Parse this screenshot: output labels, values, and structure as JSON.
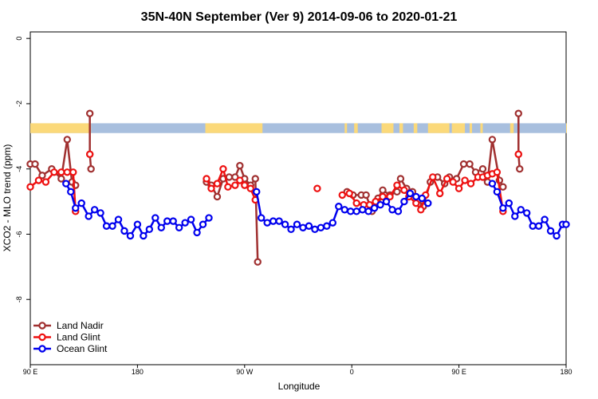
{
  "chart_data": {
    "type": "line",
    "title": "35N-40N September (Ver 9)   2014-09-06 to 2020-01-21",
    "xlabel": "Longitude",
    "ylabel": "XCO2 - MLO trend (ppm)",
    "xlim": [
      90,
      540
    ],
    "ylim": [
      -10,
      0.2
    ],
    "x_ticks": [
      {
        "value": 90,
        "label": "90 E"
      },
      {
        "value": 180,
        "label": "180"
      },
      {
        "value": 270,
        "label": "90 W"
      },
      {
        "value": 360,
        "label": "0"
      },
      {
        "value": 450,
        "label": "90 E"
      },
      {
        "value": 540,
        "label": "180"
      }
    ],
    "y_ticks": [
      {
        "value": 0,
        "label": "0"
      },
      {
        "value": -2,
        "label": "-2"
      },
      {
        "value": -4,
        "label": "-4"
      },
      {
        "value": -6,
        "label": "-6"
      },
      {
        "value": -8,
        "label": "-8"
      }
    ],
    "legend_position": "bottom-left",
    "land_sea_strip": {
      "y_range": [
        -2.9,
        -2.6
      ],
      "ocean_color": "#a8bfde",
      "land_color": "#fbd97a",
      "land_x_ranges": [
        [
          90,
          141
        ],
        [
          237,
          285
        ],
        [
          354,
          356
        ],
        [
          362,
          365
        ],
        [
          385,
          395
        ],
        [
          400,
          403
        ],
        [
          412,
          415
        ],
        [
          424,
          442
        ],
        [
          444,
          455
        ],
        [
          459,
          461
        ],
        [
          468,
          470
        ],
        [
          493,
          496
        ],
        [
          540,
          540
        ]
      ]
    },
    "series": [
      {
        "name": "Land Nadir",
        "color": "#a03030",
        "segments": [
          [
            [
              90,
              -3.85
            ],
            [
              94,
              -3.85
            ],
            [
              100,
              -4.2
            ],
            [
              108,
              -4.0
            ],
            [
              116,
              -4.3
            ],
            [
              121,
              -3.1
            ],
            [
              125,
              -4.4
            ],
            [
              128,
              -4.5
            ]
          ],
          [
            [
              140,
              -2.3
            ],
            [
              140,
              -3.55
            ],
            [
              141,
              -4.0
            ]
          ],
          [
            [
              238,
              -4.4
            ],
            [
              242,
              -4.5
            ],
            [
              247,
              -4.85
            ],
            [
              252,
              -4.3
            ],
            [
              257,
              -4.25
            ],
            [
              262,
              -4.25
            ],
            [
              266,
              -3.9
            ],
            [
              270,
              -4.3
            ],
            [
              275,
              -4.5
            ],
            [
              279,
              -4.3
            ],
            [
              281,
              -6.85
            ]
          ],
          [
            [
              356,
              -4.7
            ],
            [
              361,
              -4.8
            ],
            [
              368,
              -4.8
            ],
            [
              372,
              -4.8
            ],
            [
              377,
              -5.3
            ],
            [
              382,
              -4.9
            ],
            [
              386,
              -4.65
            ],
            [
              392,
              -4.8
            ],
            [
              398,
              -4.7
            ],
            [
              401,
              -4.3
            ],
            [
              406,
              -4.6
            ],
            [
              411,
              -4.7
            ],
            [
              416,
              -4.95
            ],
            [
              420,
              -5.15
            ],
            [
              426,
              -4.4
            ],
            [
              432,
              -4.25
            ],
            [
              438,
              -4.45
            ],
            [
              442,
              -4.25
            ],
            [
              448,
              -4.3
            ],
            [
              454,
              -3.85
            ],
            [
              459,
              -3.85
            ],
            [
              464,
              -4.1
            ],
            [
              470,
              -4.0
            ],
            [
              474,
              -4.4
            ],
            [
              478,
              -3.1
            ],
            [
              484,
              -4.35
            ],
            [
              487,
              -4.55
            ]
          ],
          [
            [
              500,
              -2.3
            ],
            [
              500,
              -3.55
            ],
            [
              501,
              -4.0
            ]
          ]
        ]
      },
      {
        "name": "Land Glint",
        "color": "#ee1111",
        "segments": [
          [
            [
              90,
              -4.55
            ],
            [
              97,
              -4.35
            ],
            [
              103,
              -4.4
            ],
            [
              110,
              -4.1
            ],
            [
              116,
              -4.1
            ],
            [
              121,
              -4.1
            ],
            [
              126,
              -4.1
            ],
            [
              128,
              -5.3
            ]
          ],
          [
            [
              140,
              -3.55
            ]
          ],
          [
            [
              238,
              -4.3
            ],
            [
              242,
              -4.6
            ],
            [
              247,
              -4.45
            ],
            [
              252,
              -4.0
            ],
            [
              256,
              -4.55
            ],
            [
              262,
              -4.5
            ],
            [
              266,
              -4.35
            ],
            [
              270,
              -4.5
            ],
            [
              275,
              -4.6
            ],
            [
              279,
              -4.95
            ]
          ],
          [
            [
              331,
              -4.6
            ]
          ],
          [
            [
              352,
              -4.8
            ],
            [
              358,
              -4.75
            ],
            [
              364,
              -5.05
            ],
            [
              370,
              -5.1
            ],
            [
              375,
              -5.1
            ],
            [
              380,
              -5.0
            ],
            [
              386,
              -4.85
            ],
            [
              392,
              -4.85
            ],
            [
              398,
              -4.5
            ],
            [
              404,
              -4.65
            ],
            [
              408,
              -4.85
            ],
            [
              414,
              -5.05
            ],
            [
              418,
              -5.25
            ],
            [
              422,
              -4.8
            ],
            [
              428,
              -4.25
            ],
            [
              434,
              -4.75
            ],
            [
              440,
              -4.3
            ],
            [
              445,
              -4.4
            ],
            [
              450,
              -4.6
            ],
            [
              455,
              -4.35
            ],
            [
              460,
              -4.45
            ],
            [
              466,
              -4.25
            ],
            [
              470,
              -4.25
            ],
            [
              474,
              -4.2
            ],
            [
              478,
              -4.15
            ],
            [
              482,
              -4.1
            ],
            [
              487,
              -5.3
            ]
          ],
          [
            [
              500,
              -3.55
            ]
          ]
        ]
      },
      {
        "name": "Ocean Glint",
        "color": "#0000ee",
        "segments": [
          [
            [
              120,
              -4.45
            ],
            [
              124,
              -4.7
            ],
            [
              128,
              -5.2
            ],
            [
              133,
              -5.05
            ],
            [
              139,
              -5.45
            ],
            [
              144,
              -5.25
            ],
            [
              149,
              -5.35
            ],
            [
              154,
              -5.75
            ],
            [
              159,
              -5.75
            ],
            [
              164,
              -5.55
            ],
            [
              169,
              -5.9
            ],
            [
              174,
              -6.05
            ],
            [
              180,
              -5.7
            ],
            [
              185,
              -6.05
            ],
            [
              190,
              -5.85
            ],
            [
              195,
              -5.5
            ],
            [
              200,
              -5.8
            ],
            [
              205,
              -5.6
            ],
            [
              210,
              -5.6
            ],
            [
              215,
              -5.8
            ],
            [
              220,
              -5.65
            ],
            [
              225,
              -5.55
            ],
            [
              230,
              -5.95
            ],
            [
              235,
              -5.7
            ],
            [
              240,
              -5.5
            ]
          ],
          [
            [
              280,
              -4.7
            ],
            [
              284,
              -5.5
            ],
            [
              289,
              -5.65
            ],
            [
              294,
              -5.6
            ],
            [
              299,
              -5.6
            ],
            [
              304,
              -5.7
            ],
            [
              309,
              -5.85
            ],
            [
              314,
              -5.7
            ],
            [
              319,
              -5.8
            ],
            [
              324,
              -5.75
            ],
            [
              329,
              -5.85
            ],
            [
              334,
              -5.8
            ],
            [
              339,
              -5.75
            ],
            [
              344,
              -5.65
            ],
            [
              349,
              -5.15
            ],
            [
              354,
              -5.25
            ],
            [
              359,
              -5.3
            ],
            [
              364,
              -5.3
            ],
            [
              369,
              -5.25
            ],
            [
              374,
              -5.3
            ],
            [
              379,
              -5.2
            ],
            [
              384,
              -5.1
            ],
            [
              389,
              -5.0
            ],
            [
              394,
              -5.25
            ],
            [
              399,
              -5.3
            ],
            [
              404,
              -5.0
            ],
            [
              409,
              -4.75
            ],
            [
              414,
              -4.85
            ],
            [
              419,
              -4.9
            ],
            [
              424,
              -5.05
            ]
          ],
          [
            [
              478,
              -4.45
            ],
            [
              482,
              -4.7
            ],
            [
              487,
              -5.2
            ],
            [
              492,
              -5.05
            ],
            [
              497,
              -5.45
            ],
            [
              502,
              -5.25
            ],
            [
              507,
              -5.35
            ],
            [
              512,
              -5.75
            ],
            [
              517,
              -5.75
            ],
            [
              522,
              -5.55
            ],
            [
              527,
              -5.9
            ],
            [
              532,
              -6.05
            ],
            [
              537,
              -5.7
            ],
            [
              540,
              -5.7
            ]
          ]
        ]
      }
    ]
  }
}
